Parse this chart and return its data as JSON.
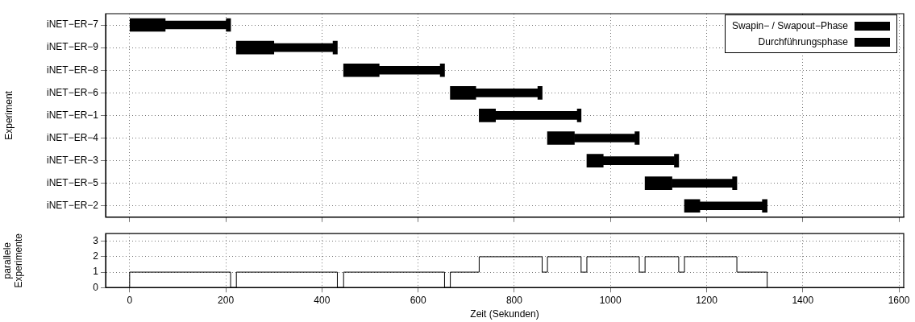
{
  "chart_data": [
    {
      "type": "bar",
      "orientation": "horizontal",
      "ylabel": "Experiment",
      "categories": [
        "iNET−ER−7",
        "iNET−ER−9",
        "iNET−ER−8",
        "iNET−ER−6",
        "iNET−ER−1",
        "iNET−ER−4",
        "iNET−ER−3",
        "iNET−ER−5",
        "iNET−ER−2"
      ],
      "series": [
        {
          "name": "Swapin− / Swapout−Phase",
          "color": "#000000",
          "base": [
            0,
            222,
            445,
            667,
            727,
            869,
            951,
            1072,
            1154
          ],
          "values": [
            74,
            78,
            74,
            53,
            34,
            56,
            34,
            56,
            32
          ]
        },
        {
          "name": "Durchführungsphase",
          "color": "#000000",
          "base": [
            74,
            300,
            519,
            720,
            761,
            925,
            985,
            1128,
            1186
          ],
          "values": [
            127,
            123,
            127,
            129,
            170,
            126,
            148,
            126,
            130
          ]
        },
        {
          "color": "#000000",
          "base": [
            201,
            423,
            646,
            849,
            931,
            1051,
            1133,
            1254,
            1316
          ],
          "values": [
            9,
            9,
            9,
            9,
            8,
            9,
            9,
            9,
            10
          ]
        }
      ],
      "xlim": [
        -50,
        1610
      ],
      "xticks": [
        0,
        200,
        400,
        600,
        800,
        1000,
        1200,
        1400,
        1600
      ],
      "tick_labels": "y",
      "grid": true,
      "legend": "top right"
    },
    {
      "type": "step",
      "xlabel": "Zeit (Sekunden)",
      "ylabel": "parallele Experimente",
      "color": "#000000",
      "x": [
        0,
        0,
        210,
        222,
        432,
        445,
        655,
        667,
        727,
        858,
        869,
        939,
        951,
        1060,
        1072,
        1142,
        1154,
        1263,
        1326
      ],
      "values": [
        0,
        1,
        0,
        1,
        0,
        1,
        0,
        1,
        2,
        1,
        2,
        1,
        2,
        1,
        2,
        1,
        2,
        1,
        0
      ],
      "xlim": [
        -50,
        1610
      ],
      "xticks": [
        0,
        200,
        400,
        600,
        800,
        1000,
        1200,
        1400,
        1600
      ],
      "ylim": [
        0,
        3.5
      ],
      "yticks": [
        0,
        1,
        2,
        3
      ],
      "grid": true
    }
  ]
}
